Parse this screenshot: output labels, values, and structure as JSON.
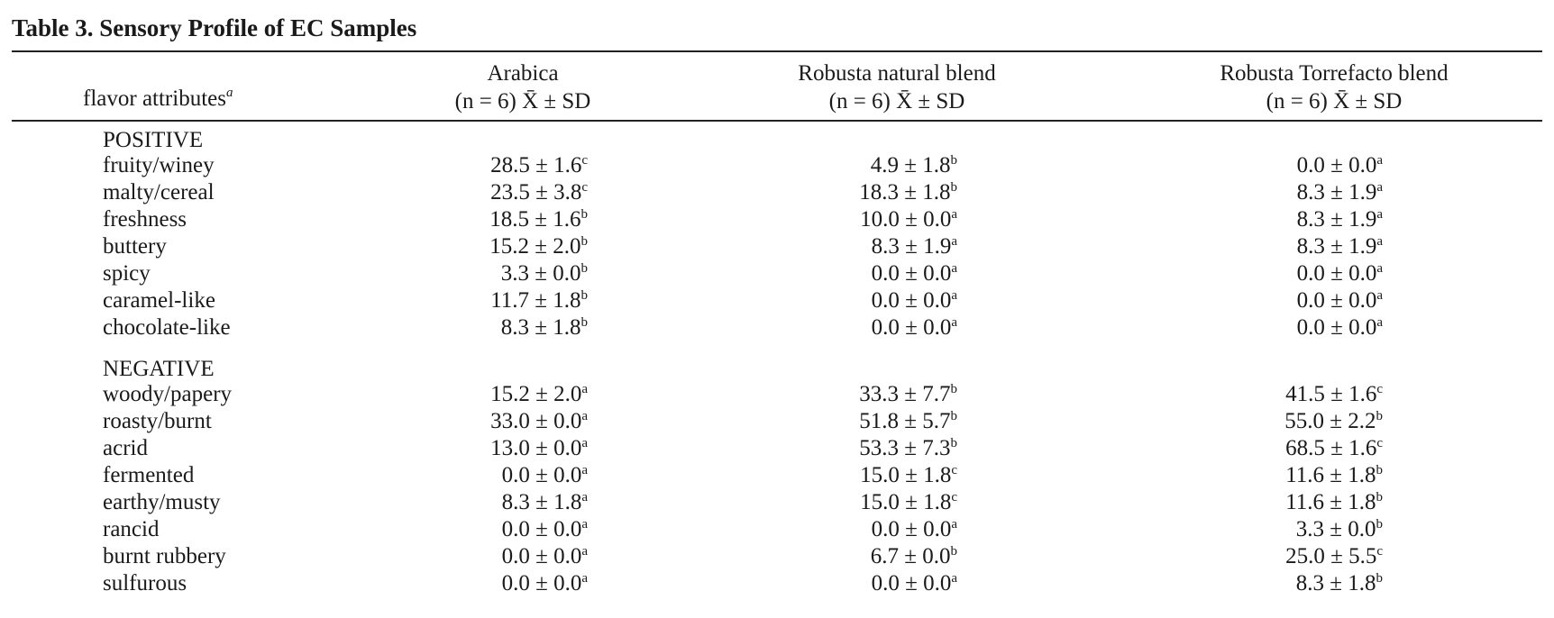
{
  "table": {
    "caption": "Table 3.  Sensory Profile of EC Samples",
    "header": {
      "attr_label": "flavor attributes",
      "attr_note": "a",
      "columns": [
        {
          "name": "Arabica",
          "stat": "(n = 6) X̄ ± SD"
        },
        {
          "name": "Robusta natural blend",
          "stat": "(n = 6) X̄ ± SD"
        },
        {
          "name": "Robusta Torrefacto blend",
          "stat": "(n = 6) X̄ ± SD"
        }
      ]
    },
    "sections": [
      {
        "title": "POSITIVE",
        "rows": [
          {
            "attr": "fruity/winey",
            "cells": [
              {
                "v": "28.5 ± 1.6",
                "s": "c"
              },
              {
                "v": "4.9 ± 1.8",
                "s": "b"
              },
              {
                "v": "0.0 ± 0.0",
                "s": "a"
              }
            ]
          },
          {
            "attr": "malty/cereal",
            "cells": [
              {
                "v": "23.5 ± 3.8",
                "s": "c"
              },
              {
                "v": "18.3 ± 1.8",
                "s": "b"
              },
              {
                "v": "8.3 ± 1.9",
                "s": "a"
              }
            ]
          },
          {
            "attr": "freshness",
            "cells": [
              {
                "v": "18.5 ± 1.6",
                "s": "b"
              },
              {
                "v": "10.0 ± 0.0",
                "s": "a"
              },
              {
                "v": "8.3 ± 1.9",
                "s": "a"
              }
            ]
          },
          {
            "attr": "buttery",
            "cells": [
              {
                "v": "15.2 ± 2.0",
                "s": "b"
              },
              {
                "v": "8.3 ± 1.9",
                "s": "a"
              },
              {
                "v": "8.3 ± 1.9",
                "s": "a"
              }
            ]
          },
          {
            "attr": "spicy",
            "cells": [
              {
                "v": "3.3 ± 0.0",
                "s": "b"
              },
              {
                "v": "0.0 ± 0.0",
                "s": "a"
              },
              {
                "v": "0.0 ± 0.0",
                "s": "a"
              }
            ]
          },
          {
            "attr": "caramel-like",
            "cells": [
              {
                "v": "11.7 ± 1.8",
                "s": "b"
              },
              {
                "v": "0.0 ± 0.0",
                "s": "a"
              },
              {
                "v": "0.0 ± 0.0",
                "s": "a"
              }
            ]
          },
          {
            "attr": "chocolate-like",
            "cells": [
              {
                "v": "8.3 ± 1.8",
                "s": "b"
              },
              {
                "v": "0.0 ± 0.0",
                "s": "a"
              },
              {
                "v": "0.0 ± 0.0",
                "s": "a"
              }
            ]
          }
        ]
      },
      {
        "title": "NEGATIVE",
        "rows": [
          {
            "attr": "woody/papery",
            "cells": [
              {
                "v": "15.2 ± 2.0",
                "s": "a"
              },
              {
                "v": "33.3 ± 7.7",
                "s": "b"
              },
              {
                "v": "41.5 ± 1.6",
                "s": "c"
              }
            ]
          },
          {
            "attr": "roasty/burnt",
            "cells": [
              {
                "v": "33.0 ± 0.0",
                "s": "a"
              },
              {
                "v": "51.8 ± 5.7",
                "s": "b"
              },
              {
                "v": "55.0 ± 2.2",
                "s": "b"
              }
            ]
          },
          {
            "attr": "acrid",
            "cells": [
              {
                "v": "13.0 ± 0.0",
                "s": "a"
              },
              {
                "v": "53.3 ± 7.3",
                "s": "b"
              },
              {
                "v": "68.5 ± 1.6",
                "s": "c"
              }
            ]
          },
          {
            "attr": "fermented",
            "cells": [
              {
                "v": "0.0 ± 0.0",
                "s": "a"
              },
              {
                "v": "15.0 ± 1.8",
                "s": "c"
              },
              {
                "v": "11.6 ± 1.8",
                "s": "b"
              }
            ]
          },
          {
            "attr": "earthy/musty",
            "cells": [
              {
                "v": "8.3 ± 1.8",
                "s": "a"
              },
              {
                "v": "15.0 ± 1.8",
                "s": "c"
              },
              {
                "v": "11.6 ± 1.8",
                "s": "b"
              }
            ]
          },
          {
            "attr": "rancid",
            "cells": [
              {
                "v": "0.0 ± 0.0",
                "s": "a"
              },
              {
                "v": "0.0 ± 0.0",
                "s": "a"
              },
              {
                "v": "3.3 ± 0.0",
                "s": "b"
              }
            ]
          },
          {
            "attr": "burnt rubbery",
            "cells": [
              {
                "v": "0.0 ± 0.0",
                "s": "a"
              },
              {
                "v": "6.7 ± 0.0",
                "s": "b"
              },
              {
                "v": "25.0 ± 5.5",
                "s": "c"
              }
            ]
          },
          {
            "attr": "sulfurous",
            "cells": [
              {
                "v": "0.0 ± 0.0",
                "s": "a"
              },
              {
                "v": "0.0 ± 0.0",
                "s": "a"
              },
              {
                "v": "8.3 ± 1.8",
                "s": "b"
              }
            ]
          }
        ]
      }
    ]
  }
}
